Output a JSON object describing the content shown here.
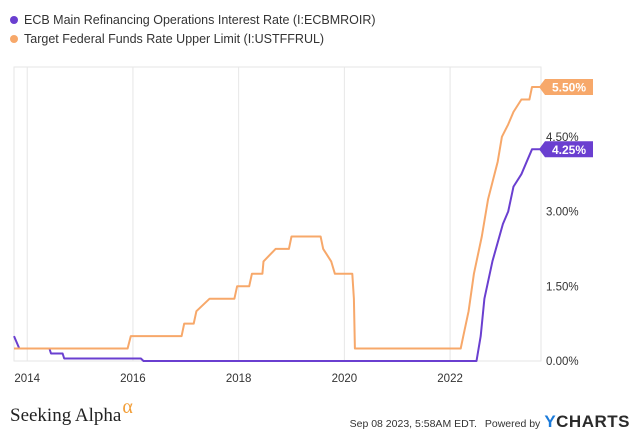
{
  "legend": [
    {
      "label": "ECB Main Refinancing Operations Interest Rate (I:ECBMROIR)",
      "color": "#6a3fd0"
    },
    {
      "label": "Target Federal Funds Rate Upper Limit (I:USTFFRUL)",
      "color": "#f7a86a"
    }
  ],
  "chart_data": {
    "type": "line",
    "xlim": [
      2013.75,
      2023.72
    ],
    "ylim": [
      0,
      5.5
    ],
    "x_ticks": [
      {
        "value": 2014,
        "label": "2014"
      },
      {
        "value": 2016,
        "label": "2016"
      },
      {
        "value": 2018,
        "label": "2018"
      },
      {
        "value": 2020,
        "label": "2020"
      },
      {
        "value": 2022,
        "label": "2022"
      }
    ],
    "y_ticks": [
      {
        "value": 0,
        "label": "0.00%"
      },
      {
        "value": 1.5,
        "label": "1.50%"
      },
      {
        "value": 3.0,
        "label": "3.00%"
      },
      {
        "value": 4.5,
        "label": "4.50%"
      }
    ],
    "grid": "vertical",
    "series": [
      {
        "name": "ECB Main Refinancing Operations Interest Rate (I:ECBMROIR)",
        "color": "#6a3fd0",
        "end_label": "4.25%",
        "points": [
          [
            2013.75,
            0.5
          ],
          [
            2013.85,
            0.25
          ],
          [
            2014.42,
            0.25
          ],
          [
            2014.45,
            0.15
          ],
          [
            2014.67,
            0.15
          ],
          [
            2014.7,
            0.05
          ],
          [
            2016.15,
            0.05
          ],
          [
            2016.2,
            0.0
          ],
          [
            2022.5,
            0.0
          ],
          [
            2022.58,
            0.5
          ],
          [
            2022.65,
            1.25
          ],
          [
            2022.8,
            2.0
          ],
          [
            2023.0,
            2.75
          ],
          [
            2023.1,
            3.0
          ],
          [
            2023.2,
            3.5
          ],
          [
            2023.35,
            3.75
          ],
          [
            2023.45,
            4.0
          ],
          [
            2023.55,
            4.25
          ],
          [
            2023.72,
            4.25
          ]
        ]
      },
      {
        "name": "Target Federal Funds Rate Upper Limit (I:USTFFRUL)",
        "color": "#f7a86a",
        "end_label": "5.50%",
        "points": [
          [
            2013.75,
            0.25
          ],
          [
            2015.9,
            0.25
          ],
          [
            2015.96,
            0.5
          ],
          [
            2016.92,
            0.5
          ],
          [
            2016.97,
            0.75
          ],
          [
            2017.15,
            0.75
          ],
          [
            2017.2,
            1.0
          ],
          [
            2017.45,
            1.25
          ],
          [
            2017.92,
            1.25
          ],
          [
            2017.97,
            1.5
          ],
          [
            2018.2,
            1.5
          ],
          [
            2018.25,
            1.75
          ],
          [
            2018.45,
            1.75
          ],
          [
            2018.47,
            2.0
          ],
          [
            2018.7,
            2.25
          ],
          [
            2018.95,
            2.25
          ],
          [
            2019.0,
            2.5
          ],
          [
            2019.55,
            2.5
          ],
          [
            2019.6,
            2.25
          ],
          [
            2019.75,
            2.0
          ],
          [
            2019.82,
            1.75
          ],
          [
            2020.15,
            1.75
          ],
          [
            2020.18,
            1.25
          ],
          [
            2020.2,
            0.25
          ],
          [
            2022.2,
            0.25
          ],
          [
            2022.25,
            0.5
          ],
          [
            2022.35,
            1.0
          ],
          [
            2022.45,
            1.75
          ],
          [
            2022.6,
            2.5
          ],
          [
            2022.72,
            3.25
          ],
          [
            2022.9,
            4.0
          ],
          [
            2022.98,
            4.5
          ],
          [
            2023.1,
            4.75
          ],
          [
            2023.2,
            5.0
          ],
          [
            2023.35,
            5.25
          ],
          [
            2023.5,
            5.25
          ],
          [
            2023.55,
            5.5
          ],
          [
            2023.72,
            5.5
          ]
        ]
      }
    ]
  },
  "footer": {
    "brand": "Seeking Alpha",
    "brand_symbol": "α",
    "timestamp": "Sep 08 2023, 5:58AM EDT.",
    "powered_by": "Powered by",
    "provider_y": "Y",
    "provider_rest": "CHARTS"
  }
}
